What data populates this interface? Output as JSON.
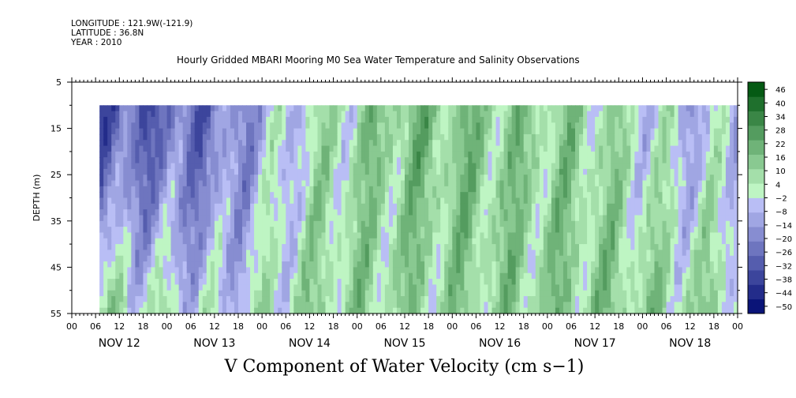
{
  "header": {
    "longitude": "LONGITUDE : 121.9W(-121.9)",
    "latitude": "LATITUDE : 36.8N",
    "year": "YEAR : 2010",
    "title": "Hourly Gridded MBARI Mooring M0 Sea Water Temperature and Salinity Observations"
  },
  "footer": {
    "variable_label": "V Component of Water Velocity (cm s−1)"
  },
  "chart_data": {
    "type": "heatmap",
    "title": "Hourly Gridded MBARI Mooring M0 Sea Water Temperature and Salinity Observations",
    "xlabel": "",
    "ylabel": "DEPTH (m)",
    "colorbar_label": "V Component of Water Velocity (cm s−1)",
    "ylim": [
      55,
      5
    ],
    "y_ticks": [
      5,
      15,
      25,
      35,
      45,
      55
    ],
    "y_data_range": [
      10,
      55
    ],
    "x_hour_ticks": [
      "00",
      "06",
      "12",
      "18",
      "00",
      "06",
      "12",
      "18",
      "00",
      "06",
      "12",
      "18",
      "00",
      "06",
      "12",
      "18",
      "00",
      "06",
      "12",
      "18",
      "00",
      "06",
      "12",
      "18",
      "00",
      "06",
      "12",
      "18",
      "00"
    ],
    "x_day_labels": [
      "NOV 12",
      "NOV 13",
      "NOV 14",
      "NOV 15",
      "NOV 16",
      "NOV 17",
      "NOV 18"
    ],
    "x_data_start_hour": 7,
    "colorbar_levels": [
      -50,
      -44,
      -38,
      -32,
      -26,
      -20,
      -14,
      -8,
      -2,
      4,
      10,
      16,
      22,
      28,
      34,
      40,
      46
    ],
    "colorbar_tick_labels": [
      "46",
      "40",
      "34",
      "28",
      "22",
      "16",
      "10",
      "4",
      "−2",
      "−8",
      "−14",
      "−20",
      "−26",
      "−32",
      "−38",
      "−44",
      "−50"
    ],
    "colors": {
      "strong_negative": "#1f4fdc",
      "weak_negative": "#9aa8ee",
      "weak_positive": "#9ff0a8",
      "strong_positive": "#12e23a"
    },
    "regime_profile_by_day": [
      {
        "day": "NOV 12",
        "surface_v": -28,
        "bottom_v": 6
      },
      {
        "day": "NOV 13",
        "surface_v": -22,
        "bottom_v": -4
      },
      {
        "day": "NOV 14",
        "surface_v": 2,
        "bottom_v": 8
      },
      {
        "day": "NOV 15",
        "surface_v": 14,
        "bottom_v": 8
      },
      {
        "day": "NOV 16",
        "surface_v": 12,
        "bottom_v": 10
      },
      {
        "day": "NOV 17",
        "surface_v": 8,
        "bottom_v": 12
      },
      {
        "day": "NOV 18",
        "surface_v": -6,
        "bottom_v": 8
      }
    ]
  }
}
